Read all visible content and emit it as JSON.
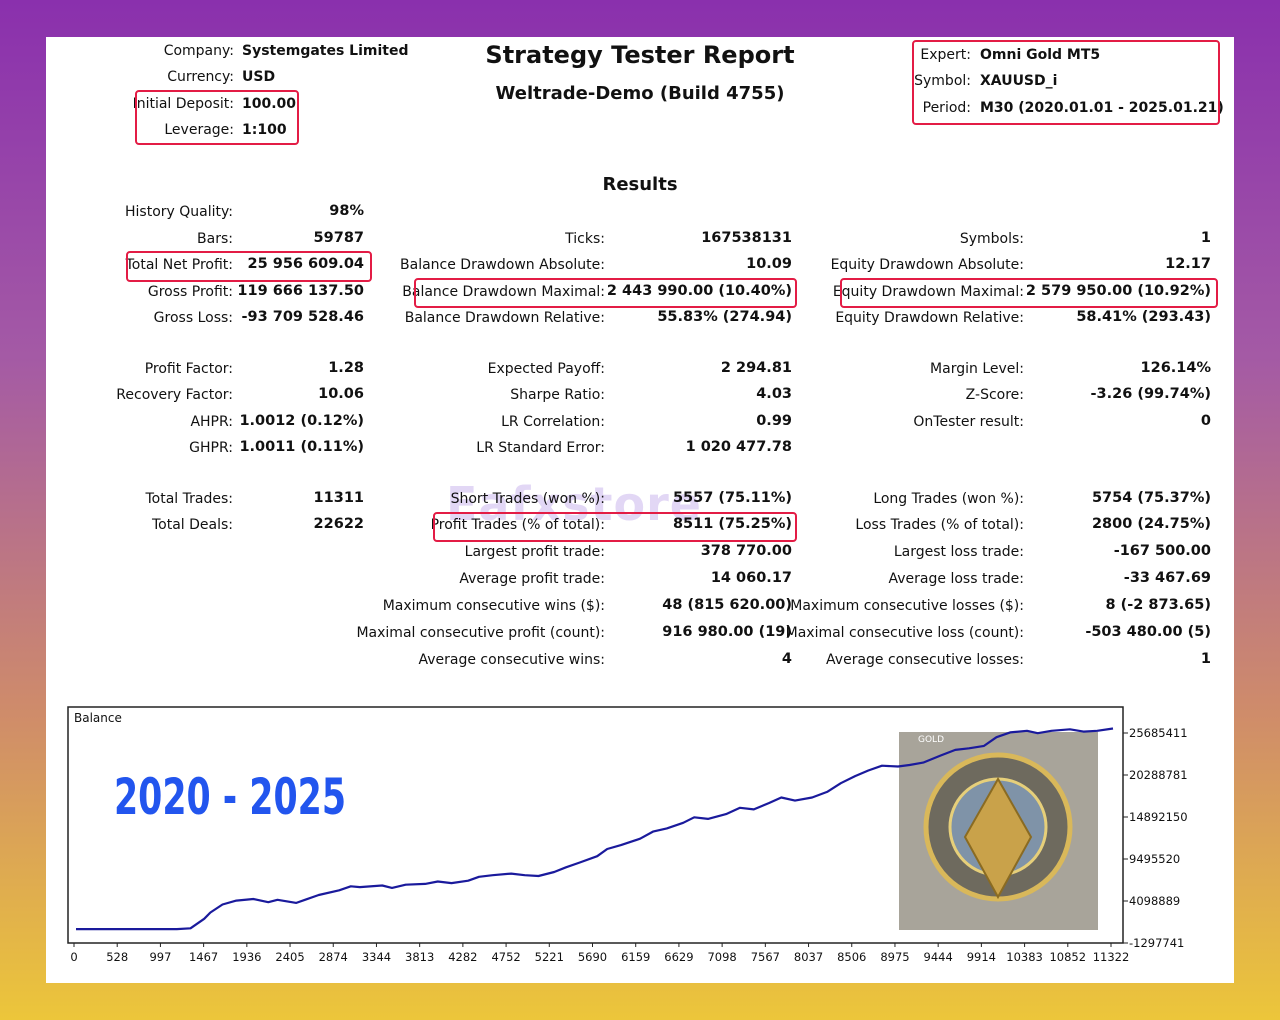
{
  "header": {
    "company_label": "Company:",
    "company": "Systemgates Limited",
    "currency_label": "Currency:",
    "currency": "USD",
    "deposit_label": "Initial Deposit:",
    "deposit": "100.00",
    "leverage_label": "Leverage:",
    "leverage": "1:100",
    "title": "Strategy Tester Report",
    "subtitle": "Weltrade-Demo (Build 4755)",
    "expert_label": "Expert:",
    "expert": "Omni Gold MT5",
    "symbol_label": "Symbol:",
    "symbol": "XAUUSD_i",
    "period_label": "Period:",
    "period": "M30 (2020.01.01 - 2025.01.21)"
  },
  "results_title": "Results",
  "col1": [
    {
      "label": "History Quality:",
      "value": "98%"
    },
    {
      "label": "Bars:",
      "value": "59787"
    },
    {
      "label": "Total Net Profit:",
      "value": "25 956 609.04"
    },
    {
      "label": "Gross Profit:",
      "value": "119 666 137.50"
    },
    {
      "label": "Gross Loss:",
      "value": "-93 709 528.46"
    },
    {
      "label": "Profit Factor:",
      "value": "1.28"
    },
    {
      "label": "Recovery Factor:",
      "value": "10.06"
    },
    {
      "label": "AHPR:",
      "value": "1.0012 (0.12%)"
    },
    {
      "label": "GHPR:",
      "value": "1.0011 (0.11%)"
    },
    {
      "label": "Total Trades:",
      "value": "11311"
    },
    {
      "label": "Total Deals:",
      "value": "22622"
    }
  ],
  "col2": [
    {
      "label": "Ticks:",
      "value": "167538131"
    },
    {
      "label": "Balance Drawdown Absolute:",
      "value": "10.09"
    },
    {
      "label": "Balance Drawdown Maximal:",
      "value": "2 443 990.00 (10.40%)"
    },
    {
      "label": "Balance Drawdown Relative:",
      "value": "55.83% (274.94)"
    },
    {
      "label": "Expected Payoff:",
      "value": "2 294.81"
    },
    {
      "label": "Sharpe Ratio:",
      "value": "4.03"
    },
    {
      "label": "LR Correlation:",
      "value": "0.99"
    },
    {
      "label": "LR Standard Error:",
      "value": "1 020 477.78"
    },
    {
      "label": "Short Trades (won %):",
      "value": "5557 (75.11%)"
    },
    {
      "label": "Profit Trades (% of total):",
      "value": "8511 (75.25%)"
    },
    {
      "label": "Largest profit trade:",
      "value": "378 770.00"
    },
    {
      "label": "Average profit trade:",
      "value": "14 060.17"
    },
    {
      "label": "Maximum consecutive wins ($):",
      "value": "48 (815 620.00)"
    },
    {
      "label": "Maximal consecutive profit (count):",
      "value": "916 980.00 (19)"
    },
    {
      "label": "Average consecutive wins:",
      "value": "4"
    }
  ],
  "col3": [
    {
      "label": "Symbols:",
      "value": "1"
    },
    {
      "label": "Equity Drawdown Absolute:",
      "value": "12.17"
    },
    {
      "label": "Equity Drawdown Maximal:",
      "value": "2 579 950.00 (10.92%)"
    },
    {
      "label": "Equity Drawdown Relative:",
      "value": "58.41% (293.43)"
    },
    {
      "label": "Margin Level:",
      "value": "126.14%"
    },
    {
      "label": "Z-Score:",
      "value": "-3.26 (99.74%)"
    },
    {
      "label": "OnTester result:",
      "value": "0"
    },
    {
      "label": "Long Trades (won %):",
      "value": "5754 (75.37%)"
    },
    {
      "label": "Loss Trades (% of total):",
      "value": "2800 (24.75%)"
    },
    {
      "label": "Largest loss trade:",
      "value": "-167 500.00"
    },
    {
      "label": "Average loss trade:",
      "value": "-33 467.69"
    },
    {
      "label": "Maximum consecutive losses ($):",
      "value": "8 (-2 873.65)"
    },
    {
      "label": "Maximal consecutive loss (count):",
      "value": "-503 480.00 (5)"
    },
    {
      "label": "Average consecutive losses:",
      "value": "1"
    }
  ],
  "watermark": "Eafxstore",
  "colors": {
    "highlight": "#e31c45",
    "balance_line": "#1a1a9c",
    "overlay_text": "#2255ee"
  },
  "chart_data": {
    "type": "line",
    "title": "Balance",
    "overlay_text": "2020 - 2025",
    "badge_text": "GOLD",
    "x_ticks": [
      "0",
      "528",
      "997",
      "1467",
      "1936",
      "2405",
      "2874",
      "3344",
      "3813",
      "4282",
      "4752",
      "5221",
      "5690",
      "6159",
      "6629",
      "7098",
      "7567",
      "8037",
      "8506",
      "8975",
      "9444",
      "9914",
      "10383",
      "10852",
      "11322"
    ],
    "y_ticks": [
      "25685411",
      "20288781",
      "14892150",
      "9495520",
      "4098889",
      "-1297741"
    ],
    "xlim": [
      0,
      11322
    ],
    "ylim": [
      -1297741,
      25685411
    ],
    "series": [
      {
        "x": [
          0,
          528,
          997,
          1100,
          1250,
          1400,
          1467,
          1600,
          1750,
          1936,
          2100,
          2200,
          2405,
          2500,
          2650,
          2874,
          3000,
          3100,
          3344,
          3450,
          3600,
          3813,
          3950,
          4100,
          4282,
          4400,
          4550,
          4752,
          4900,
          5050,
          5221,
          5350,
          5500,
          5690,
          5800,
          5950,
          6159,
          6300,
          6450,
          6629,
          6750,
          6900,
          7098,
          7250,
          7400,
          7567,
          7700,
          7850,
          8037,
          8200,
          8350,
          8506,
          8650,
          8800,
          8975,
          9100,
          9250,
          9444,
          9600,
          9750,
          9914,
          10050,
          10200,
          10383,
          10500,
          10650,
          10852,
          11000,
          11150,
          11322
        ],
        "y": [
          200000,
          200000,
          200000,
          200000,
          300000,
          1500000,
          2300000,
          3300000,
          3800000,
          4000000,
          3600000,
          3900000,
          3500000,
          3900000,
          4500000,
          5100000,
          5600000,
          5500000,
          5700000,
          5400000,
          5800000,
          5900000,
          6200000,
          6000000,
          6300000,
          6800000,
          7000000,
          7200000,
          7000000,
          6900000,
          7400000,
          8000000,
          8600000,
          9400000,
          10300000,
          10800000,
          11600000,
          12500000,
          12900000,
          13600000,
          14300000,
          14100000,
          14700000,
          15500000,
          15300000,
          16100000,
          16800000,
          16400000,
          16800000,
          17500000,
          18600000,
          19500000,
          20200000,
          20800000,
          20700000,
          20900000,
          21200000,
          22100000,
          22800000,
          23000000,
          23300000,
          24400000,
          25000000,
          25200000,
          24900000,
          25200000,
          25400000,
          25100000,
          25200000,
          25500000
        ]
      }
    ]
  }
}
